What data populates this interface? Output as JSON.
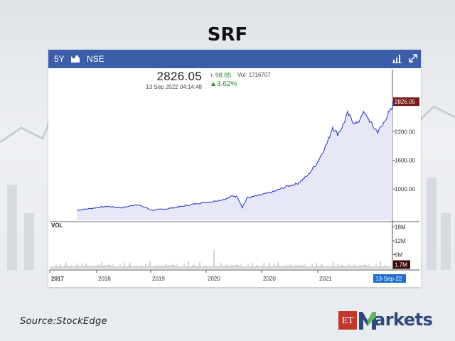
{
  "title": "SRF",
  "source": "Source:StockEdge",
  "brand": {
    "et": "ET",
    "name": "arkets",
    "color": "#2e4a7d",
    "accent": "#5cb85c"
  },
  "toolbar": {
    "period": "5Y",
    "exchange": "NSE",
    "chart_icon": "line-chart-icon",
    "bars_icon": "bar-chart-icon",
    "expand_icon": "expand-icon",
    "bg": "#3c5ea8"
  },
  "quote": {
    "price": "2826.05",
    "timestamp": "13 Sep 2022 04:14:48",
    "change": "+ 98.85",
    "volume": "Vol: 1716707",
    "percent": "3.62%"
  },
  "chart_data": [
    {
      "type": "area",
      "title": "",
      "xlabel": "",
      "ylabel": "",
      "y_ticks": [
        "2800.00",
        "2200.00",
        "1600.00",
        "1000.00"
      ],
      "y_tick_values": [
        2800,
        2200,
        1600,
        1000
      ],
      "ylim": [
        350,
        3050
      ],
      "last_label": "2826.05",
      "last_value": 2826.05,
      "color": "#2030c8",
      "fill": "#e6e8f8",
      "x": [
        "2017-06",
        "2017-09",
        "2017-12",
        "2018-03",
        "2018-06",
        "2018-09",
        "2018-12",
        "2019-03",
        "2019-06",
        "2019-09",
        "2019-12",
        "2020-01",
        "2020-02",
        "2020-03",
        "2020-04",
        "2020-06",
        "2020-09",
        "2020-12",
        "2021-02",
        "2021-04",
        "2021-06",
        "2021-08",
        "2021-09",
        "2021-10",
        "2021-11",
        "2021-12",
        "2022-01",
        "2022-02",
        "2022-03",
        "2022-04",
        "2022-05",
        "2022-06",
        "2022-07",
        "2022-08",
        "2022-09",
        "2022-09-13"
      ],
      "values": [
        560,
        600,
        640,
        610,
        680,
        560,
        590,
        640,
        700,
        740,
        800,
        860,
        840,
        620,
        820,
        860,
        940,
        1060,
        1120,
        1280,
        1560,
        1980,
        2300,
        2150,
        2320,
        2580,
        2420,
        2360,
        2600,
        2500,
        2320,
        2200,
        2330,
        2560,
        2690,
        2826.05
      ]
    },
    {
      "type": "bar",
      "title": "VOL",
      "y_ticks": [
        "18M",
        "12M",
        "6M"
      ],
      "y_tick_values": [
        18,
        12,
        6
      ],
      "ylim": [
        0,
        20
      ],
      "unit": "M",
      "last_label": "1.7M",
      "last_value": 1.7,
      "color": "#b8b8b8",
      "x_labels": [
        "2017",
        "2018",
        "2019",
        "2020",
        "2020",
        "2021",
        "13-Sep-22"
      ],
      "values_sample_M": [
        0.8,
        0.9,
        1.1,
        0.7,
        2.1,
        0.9,
        1.0,
        3.8,
        1.2,
        0.9,
        1.5,
        7.8,
        1.1,
        0.9,
        1.2,
        4.2,
        1.0,
        0.8,
        1.3,
        5.6,
        1.1,
        0.9,
        2.2,
        1.0,
        1.4,
        8.1,
        1.2,
        1.0,
        1.3,
        1.1,
        6.2,
        1.0,
        1.5,
        1.2,
        1.8,
        1.1,
        18.5,
        1.4,
        1.3,
        1.6,
        1.2,
        2.0,
        1.5,
        1.3,
        1.7
      ]
    }
  ]
}
